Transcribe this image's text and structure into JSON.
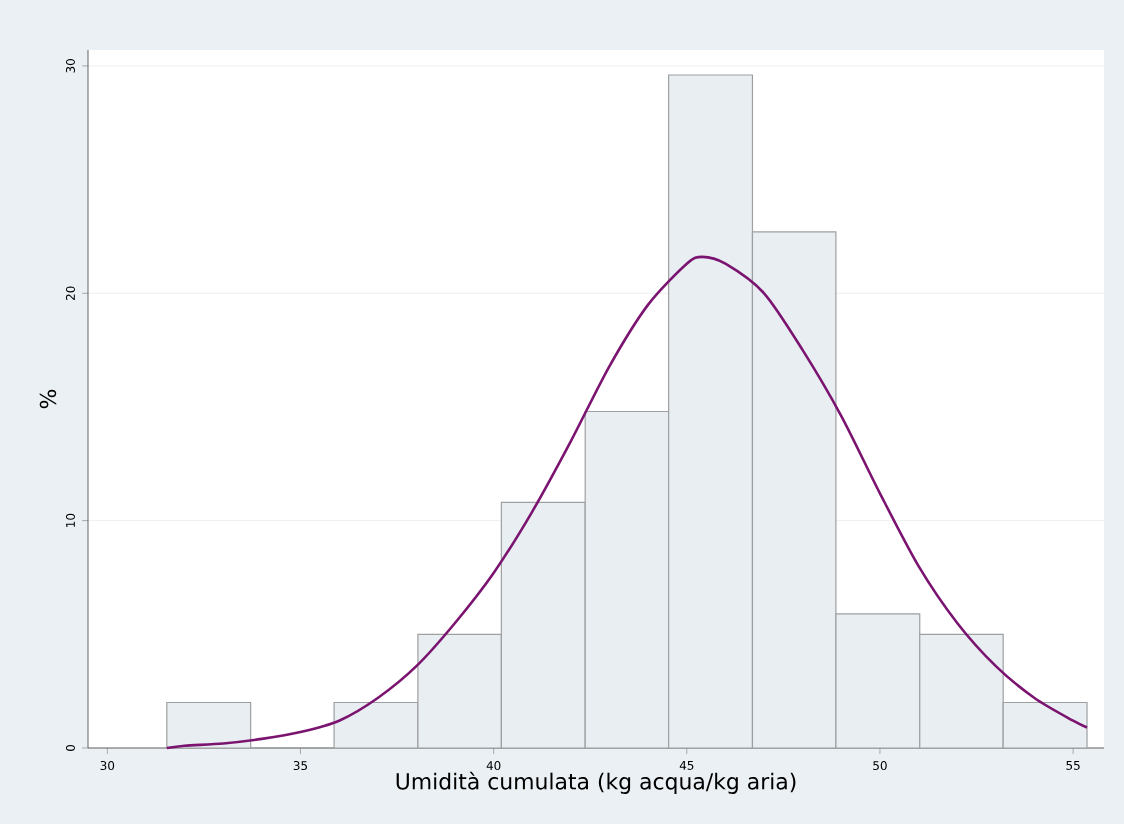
{
  "chart_data": {
    "type": "histogram",
    "xlabel": "Umidità cumulata (kg acqua/kg aria)",
    "ylabel": "%",
    "bins": [
      31.54,
      33.71,
      35.87,
      38.04,
      40.2,
      42.37,
      44.53,
      46.7,
      48.86,
      51.03,
      53.19,
      55.36
    ],
    "values": [
      2,
      0,
      2,
      5,
      10.8,
      14.8,
      29.6,
      22.7,
      5.9,
      5,
      2
    ],
    "color": "#e8eef2",
    "series": [
      {
        "type": "line",
        "color": "#7b1470",
        "x": [
          31.54,
          32,
          33,
          34,
          35,
          36,
          37,
          38,
          39,
          40,
          41,
          42,
          43,
          44,
          45,
          45.4,
          46,
          47,
          48,
          49,
          50,
          51,
          52,
          53,
          54,
          55,
          55.36
        ],
        "values": [
          0,
          0.1,
          0.2,
          0.4,
          0.7,
          1.2,
          2.2,
          3.6,
          5.5,
          7.7,
          10.4,
          13.5,
          16.8,
          19.5,
          21.3,
          21.6,
          21.3,
          20.0,
          17.5,
          14.6,
          11.2,
          8.0,
          5.5,
          3.6,
          2.2,
          1.2,
          0.9
        ]
      }
    ],
    "xlim": [
      29.5,
      55.8
    ],
    "ylim": [
      0,
      30.7
    ],
    "xticks": [
      30,
      35,
      40,
      45,
      50,
      55
    ],
    "yticks": [
      0,
      10,
      20,
      30
    ],
    "grid": "y"
  }
}
